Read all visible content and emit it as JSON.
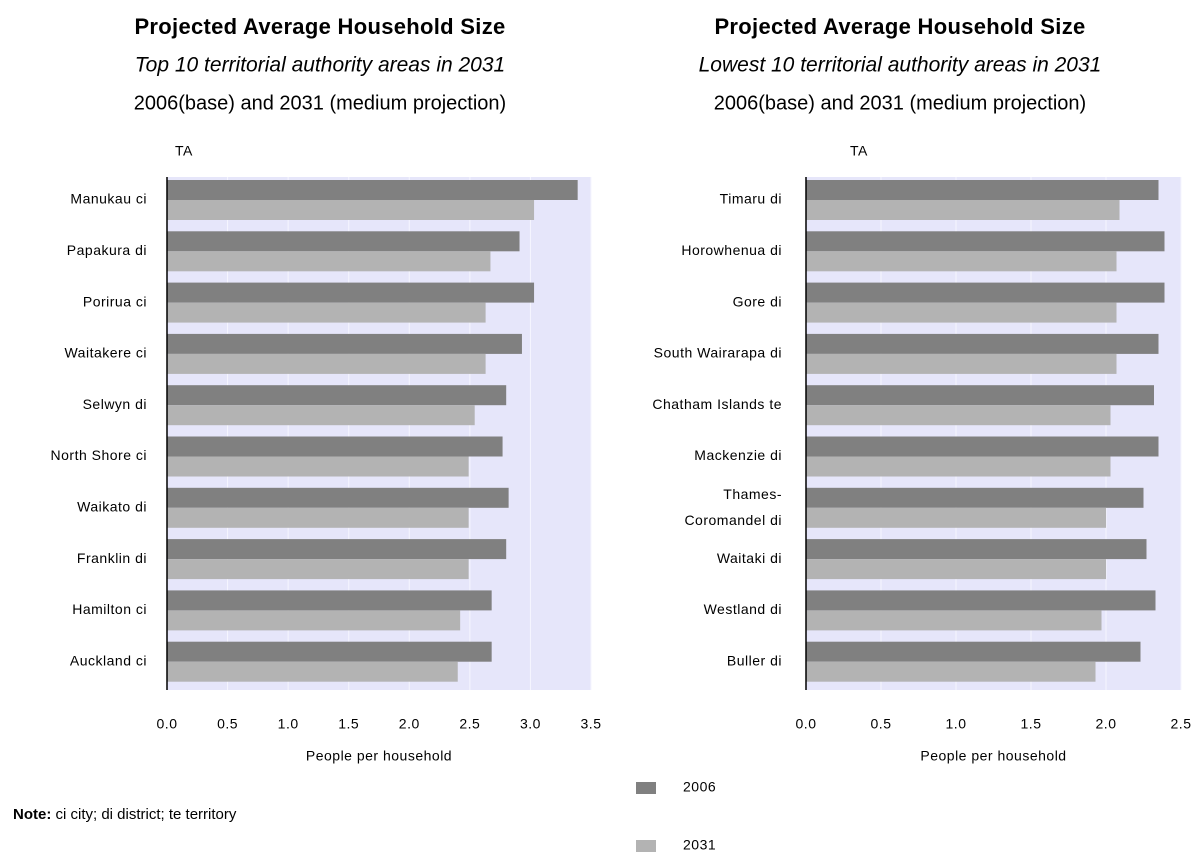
{
  "chart_data": [
    {
      "type": "bar",
      "orientation": "horizontal",
      "title": "Projected Average Household Size",
      "subtitle": "Top 10 territorial authority areas in 2031",
      "subtitle2": "2006(base) and 2031 (medium projection)",
      "y_label": "TA",
      "x_label": "People per household",
      "categories": [
        "Manukau ci",
        "Papakura di",
        "Porirua ci",
        "Waitakere ci",
        "Selwyn di",
        "North Shore ci",
        "Waikato di",
        "Franklin di",
        "Hamilton ci",
        "Auckland ci"
      ],
      "series": [
        {
          "name": "2006",
          "color": "#808080",
          "values": [
            3.39,
            2.91,
            3.03,
            2.93,
            2.8,
            2.77,
            2.82,
            2.8,
            2.68,
            2.68
          ]
        },
        {
          "name": "2031",
          "color": "#b3b3b3",
          "values": [
            3.03,
            2.67,
            2.63,
            2.63,
            2.54,
            2.49,
            2.49,
            2.49,
            2.42,
            2.4
          ]
        }
      ],
      "xlim": [
        0,
        3.5
      ],
      "xticks": [
        {
          "value": 0,
          "label": "0.0"
        },
        0.5,
        {
          "value": 1,
          "label": "1.0"
        },
        1.5,
        {
          "value": 2,
          "label": "2.0"
        },
        2.5,
        {
          "value": 3,
          "label": "3.0"
        },
        3.5
      ],
      "grid": true
    },
    {
      "type": "bar",
      "orientation": "horizontal",
      "title": "Projected Average Household Size",
      "subtitle": "Lowest 10 territorial authority areas in 2031",
      "subtitle2": "2006(base) and 2031 (medium projection)",
      "y_label": "TA",
      "x_label": "People per household",
      "categories": [
        "Timaru di",
        "Horowhenua di",
        "Gore di",
        "South Wairarapa di",
        "Chatham Islands te",
        "Mackenzie di",
        "Thames-Coromandel di",
        "Waitaki di",
        "Westland di",
        "Buller di"
      ],
      "series": [
        {
          "name": "2006",
          "color": "#808080",
          "values": [
            2.35,
            2.39,
            2.39,
            2.35,
            2.32,
            2.35,
            2.25,
            2.27,
            2.33,
            2.23
          ]
        },
        {
          "name": "2031",
          "color": "#b3b3b3",
          "values": [
            2.09,
            2.07,
            2.07,
            2.07,
            2.03,
            2.03,
            2.0,
            2.0,
            1.97,
            1.93
          ]
        }
      ],
      "xlim": [
        0,
        2.5
      ],
      "xticks": [
        {
          "value": 0,
          "label": "0.0"
        },
        0.5,
        {
          "value": 1,
          "label": "1.0"
        },
        1.5,
        {
          "value": 2,
          "label": "2.0"
        },
        2.5
      ],
      "grid": true
    }
  ],
  "note": {
    "label": "Note:",
    "text": "ci city; di district; te territory"
  }
}
